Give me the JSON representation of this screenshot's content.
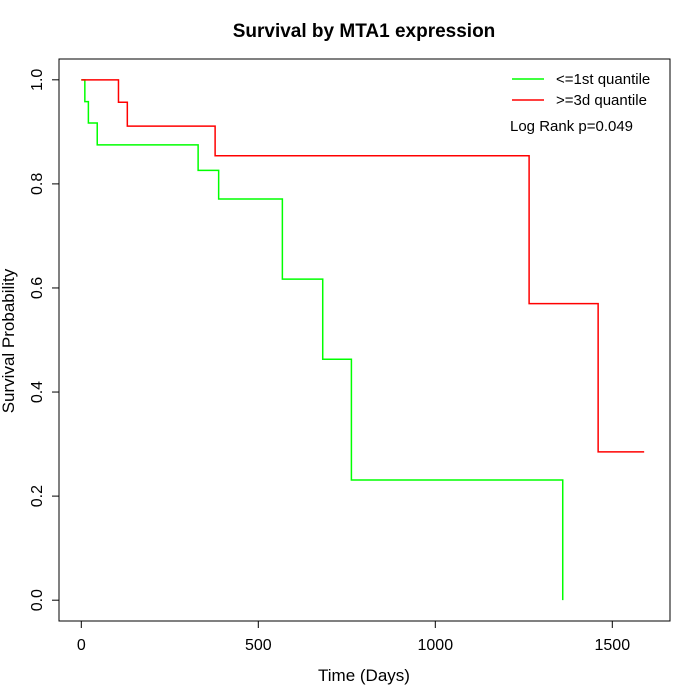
{
  "chart_data": {
    "type": "line",
    "title": "Survival by MTA1 expression",
    "xlabel": "Time (Days)",
    "ylabel": "Survival Probability",
    "xlim": [
      -63,
      1663
    ],
    "ylim": [
      -0.04,
      1.04
    ],
    "xticks": [
      0,
      500,
      1000,
      1500
    ],
    "yticks": [
      0.0,
      0.2,
      0.4,
      0.6,
      0.8,
      1.0
    ],
    "xtick_labels": [
      "0",
      "500",
      "1000",
      "1500"
    ],
    "ytick_labels": [
      "0.0",
      "0.2",
      "0.4",
      "0.6",
      "0.8",
      "1.0"
    ],
    "grid": false,
    "legend_position": "top-right",
    "annotation": "Log Rank p=0.049",
    "series": [
      {
        "name": "<=1st quantile",
        "color": "#00ff00",
        "step": true,
        "x": [
          0,
          10,
          20,
          45,
          330,
          388,
          568,
          682,
          763,
          1360,
          1360
        ],
        "y": [
          1.0,
          0.958,
          0.917,
          0.875,
          0.826,
          0.771,
          0.617,
          0.463,
          0.231,
          0.231,
          0.0
        ]
      },
      {
        "name": ">=3d quantile",
        "color": "#ff0000",
        "step": true,
        "x": [
          0,
          105,
          130,
          378,
          1265,
          1460,
          1590
        ],
        "y": [
          1.0,
          0.957,
          0.911,
          0.854,
          0.57,
          0.285,
          0.285
        ]
      }
    ]
  }
}
